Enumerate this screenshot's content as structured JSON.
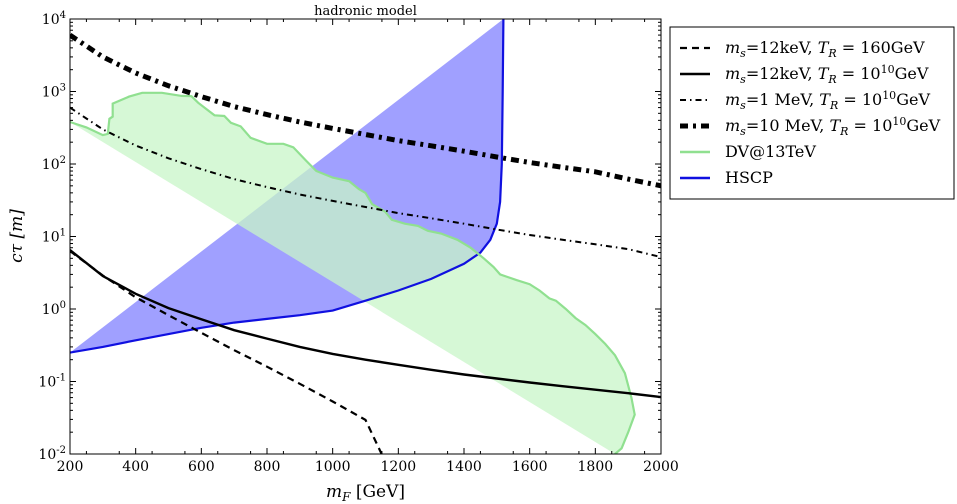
{
  "chart_data": {
    "type": "line",
    "title": "hadronic model",
    "xlabel_main": "m",
    "xlabel_sub": "F",
    "xlabel_unit": " [GeV]",
    "ylabel_main": "cτ [m]",
    "xlim": [
      200,
      2000
    ],
    "ylim_log10": [
      -2,
      4
    ],
    "log_y": true,
    "grid": false,
    "legend_position": "outside-right",
    "x_ticks": [
      200,
      400,
      600,
      800,
      1000,
      1200,
      1400,
      1600,
      1800,
      2000
    ],
    "x_tick_labels": [
      "200",
      "400",
      "600",
      "800",
      "1000",
      "1200",
      "1400",
      "1600",
      "1800",
      "2000"
    ],
    "y_ticks": [
      -2,
      -1,
      0,
      1,
      2,
      3,
      4
    ],
    "y_tick_base": "10",
    "y_tick_exps": [
      "-2",
      "-1",
      "0",
      "1",
      "2",
      "3",
      "4"
    ],
    "regions": [
      {
        "name": "HSCP",
        "fill": "#8080ff",
        "stroke": "#1010e0",
        "points": [
          [
            200,
            0.25
          ],
          [
            300,
            0.3
          ],
          [
            400,
            0.37
          ],
          [
            500,
            0.45
          ],
          [
            600,
            0.55
          ],
          [
            700,
            0.65
          ],
          [
            800,
            0.73
          ],
          [
            900,
            0.82
          ],
          [
            1000,
            0.95
          ],
          [
            1100,
            1.3
          ],
          [
            1200,
            1.8
          ],
          [
            1300,
            2.6
          ],
          [
            1400,
            4.2
          ],
          [
            1450,
            6.0
          ],
          [
            1480,
            9.0
          ],
          [
            1500,
            15
          ],
          [
            1510,
            30
          ],
          [
            1515,
            100
          ],
          [
            1518,
            1000
          ],
          [
            1520,
            10000
          ]
        ]
      },
      {
        "name": "DV@13TeV",
        "fill": "#c8f5c8",
        "stroke": "#90e090",
        "points": [
          [
            200,
            380
          ],
          [
            250,
            320
          ],
          [
            300,
            250
          ],
          [
            315,
            260
          ],
          [
            320,
            420
          ],
          [
            330,
            450
          ],
          [
            330,
            680
          ],
          [
            380,
            850
          ],
          [
            420,
            960
          ],
          [
            480,
            960
          ],
          [
            540,
            870
          ],
          [
            570,
            860
          ],
          [
            590,
            700
          ],
          [
            620,
            550
          ],
          [
            640,
            470
          ],
          [
            670,
            460
          ],
          [
            690,
            370
          ],
          [
            720,
            330
          ],
          [
            750,
            230
          ],
          [
            800,
            190
          ],
          [
            850,
            190
          ],
          [
            880,
            170
          ],
          [
            920,
            110
          ],
          [
            950,
            80
          ],
          [
            1000,
            65
          ],
          [
            1050,
            58
          ],
          [
            1080,
            45
          ],
          [
            1100,
            40
          ],
          [
            1120,
            28
          ],
          [
            1160,
            22
          ],
          [
            1180,
            17
          ],
          [
            1220,
            15
          ],
          [
            1260,
            14
          ],
          [
            1290,
            12
          ],
          [
            1330,
            11
          ],
          [
            1380,
            9
          ],
          [
            1420,
            7
          ],
          [
            1460,
            5
          ],
          [
            1490,
            3.8
          ],
          [
            1510,
            3.0
          ],
          [
            1560,
            2.5
          ],
          [
            1600,
            2.2
          ],
          [
            1630,
            1.8
          ],
          [
            1660,
            1.4
          ],
          [
            1680,
            1.3
          ],
          [
            1710,
            1.0
          ],
          [
            1740,
            0.75
          ],
          [
            1770,
            0.6
          ],
          [
            1800,
            0.45
          ],
          [
            1830,
            0.33
          ],
          [
            1860,
            0.23
          ],
          [
            1890,
            0.13
          ],
          [
            1910,
            0.06
          ],
          [
            1920,
            0.035
          ],
          [
            1900,
            0.02
          ],
          [
            1880,
            0.012
          ],
          [
            1860,
            0.01
          ]
        ]
      }
    ],
    "series": [
      {
        "name": "m_s=12keV, T_R=160GeV",
        "style": "dashed",
        "width": 2.2,
        "points": [
          [
            200,
            6.3
          ],
          [
            300,
            2.9
          ],
          [
            400,
            1.45
          ],
          [
            500,
            0.82
          ],
          [
            600,
            0.47
          ],
          [
            700,
            0.27
          ],
          [
            800,
            0.16
          ],
          [
            900,
            0.093
          ],
          [
            1000,
            0.053
          ],
          [
            1100,
            0.0295
          ],
          [
            1150,
            0.0098
          ]
        ]
      },
      {
        "name": "m_s=12keV, T_R=10^10GeV",
        "style": "solid",
        "width": 2.4,
        "points": [
          [
            200,
            6.5
          ],
          [
            300,
            2.85
          ],
          [
            400,
            1.62
          ],
          [
            500,
            1.03
          ],
          [
            600,
            0.72
          ],
          [
            700,
            0.51
          ],
          [
            800,
            0.39
          ],
          [
            900,
            0.3
          ],
          [
            1000,
            0.24
          ],
          [
            1100,
            0.2
          ],
          [
            1200,
            0.17
          ],
          [
            1300,
            0.145
          ],
          [
            1400,
            0.125
          ],
          [
            1500,
            0.11
          ],
          [
            1600,
            0.097
          ],
          [
            1700,
            0.086
          ],
          [
            1800,
            0.077
          ],
          [
            1900,
            0.069
          ],
          [
            2000,
            0.061
          ]
        ]
      },
      {
        "name": "m_s=1 MeV, T_R=10^10GeV",
        "style": "dashdot",
        "width": 2,
        "points": [
          [
            200,
            600
          ],
          [
            300,
            300
          ],
          [
            400,
            180
          ],
          [
            500,
            120
          ],
          [
            600,
            85
          ],
          [
            700,
            62
          ],
          [
            800,
            48
          ],
          [
            900,
            38
          ],
          [
            1000,
            31
          ],
          [
            1100,
            25.5
          ],
          [
            1200,
            21
          ],
          [
            1300,
            17.8
          ],
          [
            1400,
            15
          ],
          [
            1500,
            12.5
          ],
          [
            1600,
            10.5
          ],
          [
            1700,
            9
          ],
          [
            1800,
            7.8
          ],
          [
            1900,
            6.7
          ],
          [
            2000,
            5.2
          ]
        ]
      },
      {
        "name": "m_s=10 MeV, T_R=10^10GeV",
        "style": "dashdot-thick",
        "width": 5,
        "points": [
          [
            200,
            6000
          ],
          [
            300,
            3000
          ],
          [
            400,
            1800
          ],
          [
            500,
            1200
          ],
          [
            600,
            850
          ],
          [
            700,
            620
          ],
          [
            800,
            480
          ],
          [
            900,
            380
          ],
          [
            1000,
            310
          ],
          [
            1100,
            255
          ],
          [
            1200,
            210
          ],
          [
            1300,
            178
          ],
          [
            1400,
            150
          ],
          [
            1500,
            125
          ],
          [
            1600,
            105
          ],
          [
            1700,
            90
          ],
          [
            1800,
            78
          ],
          [
            1900,
            62
          ],
          [
            2000,
            50
          ]
        ]
      }
    ],
    "legend": [
      {
        "style": "dashed",
        "color": "#000000",
        "width": 2.2,
        "pre": "m",
        "sub1": "s",
        "mid": "=12keV, ",
        "t": "T",
        "sub2": "R",
        "eq": " = 160",
        "sup": "",
        "post": "GeV"
      },
      {
        "style": "solid",
        "color": "#000000",
        "width": 2.4,
        "pre": "m",
        "sub1": "s",
        "mid": "=12keV, ",
        "t": "T",
        "sub2": "R",
        "eq": " = 10",
        "sup": "10",
        "post": "GeV"
      },
      {
        "style": "dashdot",
        "color": "#000000",
        "width": 2,
        "pre": "m",
        "sub1": "s",
        "mid": "=1 MeV, ",
        "t": "T",
        "sub2": "R",
        "eq": " = 10",
        "sup": "10",
        "post": "GeV"
      },
      {
        "style": "dashdot-thick",
        "color": "#000000",
        "width": 5,
        "pre": "m",
        "sub1": "s",
        "mid": "=10 MeV, ",
        "t": "T",
        "sub2": "R",
        "eq": " = 10",
        "sup": "10",
        "post": "GeV"
      },
      {
        "style": "solid",
        "color": "#90e090",
        "width": 2.4,
        "label": "DV@13TeV"
      },
      {
        "style": "solid",
        "color": "#1010e0",
        "width": 2.4,
        "label": "HSCP"
      }
    ]
  }
}
